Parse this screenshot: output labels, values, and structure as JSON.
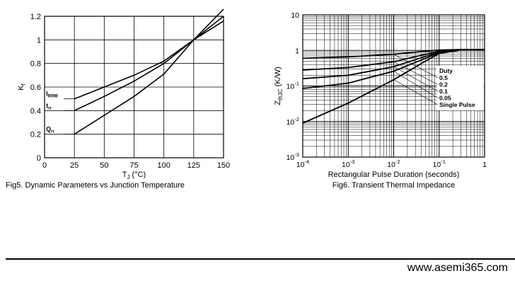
{
  "chart_data": [
    {
      "type": "line",
      "title": "Fig5. Dynamic Parameters vs Junction Temperature",
      "xlabel": "T_J (°C)",
      "ylabel": "K_f",
      "xlim": [
        0,
        150
      ],
      "ylim": [
        0,
        1.2
      ],
      "grid": true,
      "x_ticks": [
        0,
        25,
        50,
        75,
        100,
        125,
        150
      ],
      "y_ticks": [
        0,
        0.2,
        0.4,
        0.6,
        0.8,
        1,
        1.2
      ],
      "x": [
        25,
        50,
        75,
        100,
        125,
        150
      ],
      "series": [
        {
          "name": "I_RRM",
          "label_main": "I",
          "label_sub": "RRM",
          "values": [
            0.5,
            0.6,
            0.7,
            0.82,
            1.0,
            1.16
          ]
        },
        {
          "name": "t_rr",
          "label_main": "t",
          "label_sub": "rr",
          "values": [
            0.4,
            0.52,
            0.65,
            0.8,
            1.0,
            1.2
          ]
        },
        {
          "name": "Q_rr",
          "label_main": "Q",
          "label_sub": "rr",
          "values": [
            0.2,
            0.36,
            0.52,
            0.71,
            1.0,
            1.26
          ]
        }
      ]
    },
    {
      "type": "line",
      "title": "Fig6. Transient Thermal Impedance",
      "xlabel": "Rectangular Pulse Duration (seconds)",
      "ylabel": "Z_thJC (K/W)",
      "x_scale": "log",
      "y_scale": "log",
      "xlim": [
        0.0001,
        1
      ],
      "ylim": [
        0.001,
        10
      ],
      "grid": true,
      "x_ticks": [
        {
          "value": 0.0001,
          "base": "10",
          "exp": "-4"
        },
        {
          "value": 0.001,
          "base": "10",
          "exp": "-3"
        },
        {
          "value": 0.01,
          "base": "10",
          "exp": "-2"
        },
        {
          "value": 0.1,
          "base": "10",
          "exp": "-1"
        },
        {
          "value": 1,
          "base": "1",
          "exp": ""
        }
      ],
      "y_ticks": [
        {
          "value": 10,
          "base": "10",
          "exp": ""
        },
        {
          "value": 1,
          "base": "1",
          "exp": ""
        },
        {
          "value": 0.1,
          "base": "10",
          "exp": "-1"
        },
        {
          "value": 0.01,
          "base": "10",
          "exp": "-2"
        },
        {
          "value": 0.001,
          "base": "10",
          "exp": "-3"
        }
      ],
      "legend_title": "Duty",
      "series": [
        {
          "name": "0.5",
          "x": [
            0.0001,
            0.001,
            0.01,
            0.05,
            0.1,
            0.3,
            1
          ],
          "values": [
            0.6,
            0.66,
            0.78,
            0.95,
            1.02,
            1.06,
            1.06
          ]
        },
        {
          "name": "0.2",
          "x": [
            0.0001,
            0.001,
            0.01,
            0.05,
            0.1,
            0.3,
            1
          ],
          "values": [
            0.28,
            0.33,
            0.48,
            0.78,
            0.95,
            1.05,
            1.06
          ]
        },
        {
          "name": "0.1",
          "x": [
            0.0001,
            0.001,
            0.01,
            0.05,
            0.1,
            0.3,
            1
          ],
          "values": [
            0.16,
            0.2,
            0.35,
            0.68,
            0.9,
            1.05,
            1.06
          ]
        },
        {
          "name": "0.05",
          "x": [
            0.0001,
            0.001,
            0.01,
            0.05,
            0.1,
            0.3,
            1
          ],
          "values": [
            0.085,
            0.12,
            0.26,
            0.6,
            0.86,
            1.04,
            1.06
          ]
        },
        {
          "name": "Single Pulse",
          "x": [
            0.0001,
            0.001,
            0.01,
            0.05,
            0.1,
            0.3,
            1
          ],
          "values": [
            0.009,
            0.033,
            0.15,
            0.5,
            0.82,
            1.03,
            1.06
          ]
        }
      ]
    }
  ],
  "footer": {
    "url": "www.asemi365.com"
  }
}
